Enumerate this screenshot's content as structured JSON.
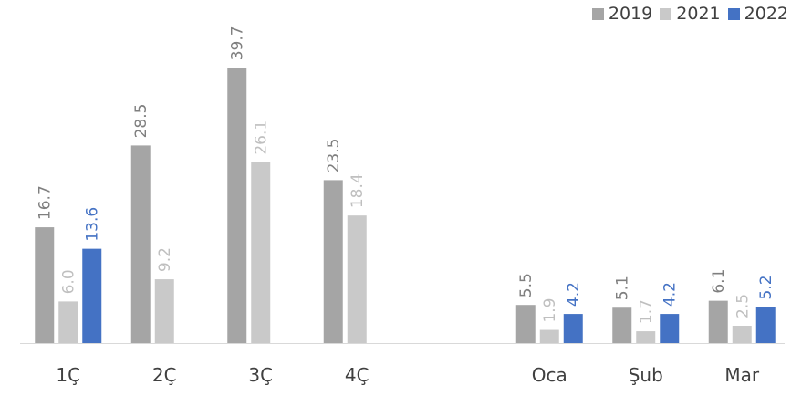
{
  "chart_data": {
    "type": "bar",
    "categories": [
      "1Ç",
      "2Ç",
      "3Ç",
      "4Ç",
      "",
      "Oca",
      "Şub",
      "Mar"
    ],
    "series": [
      {
        "name": "2019",
        "color": "#a5a5a5",
        "label_color": "#7f7f7f",
        "values": [
          16.7,
          28.5,
          39.7,
          23.5,
          null,
          5.5,
          5.1,
          6.1
        ],
        "labels": [
          "16.7",
          "28.5",
          "39.7",
          "23.5",
          null,
          "5.5",
          "5.1",
          "6.1"
        ]
      },
      {
        "name": "2021",
        "color": "#c9c9c9",
        "label_color": "#bfbfbf",
        "values": [
          6.0,
          9.2,
          26.1,
          18.4,
          null,
          1.9,
          1.7,
          2.5
        ],
        "labels": [
          "6.0",
          "9.2",
          "26.1",
          "18.4",
          null,
          "1.9",
          "1.7",
          "2.5"
        ]
      },
      {
        "name": "2022",
        "color": "#4472c4",
        "label_color": "#4472c4",
        "values": [
          13.6,
          null,
          null,
          null,
          null,
          4.2,
          4.2,
          5.2
        ],
        "labels": [
          "13.6",
          null,
          null,
          null,
          null,
          "4.2",
          "4.2",
          "5.2"
        ]
      }
    ],
    "ylim": [
      0,
      40
    ],
    "grid": false,
    "legend_position": "top-right",
    "data_labels": "rotated-vertical"
  }
}
